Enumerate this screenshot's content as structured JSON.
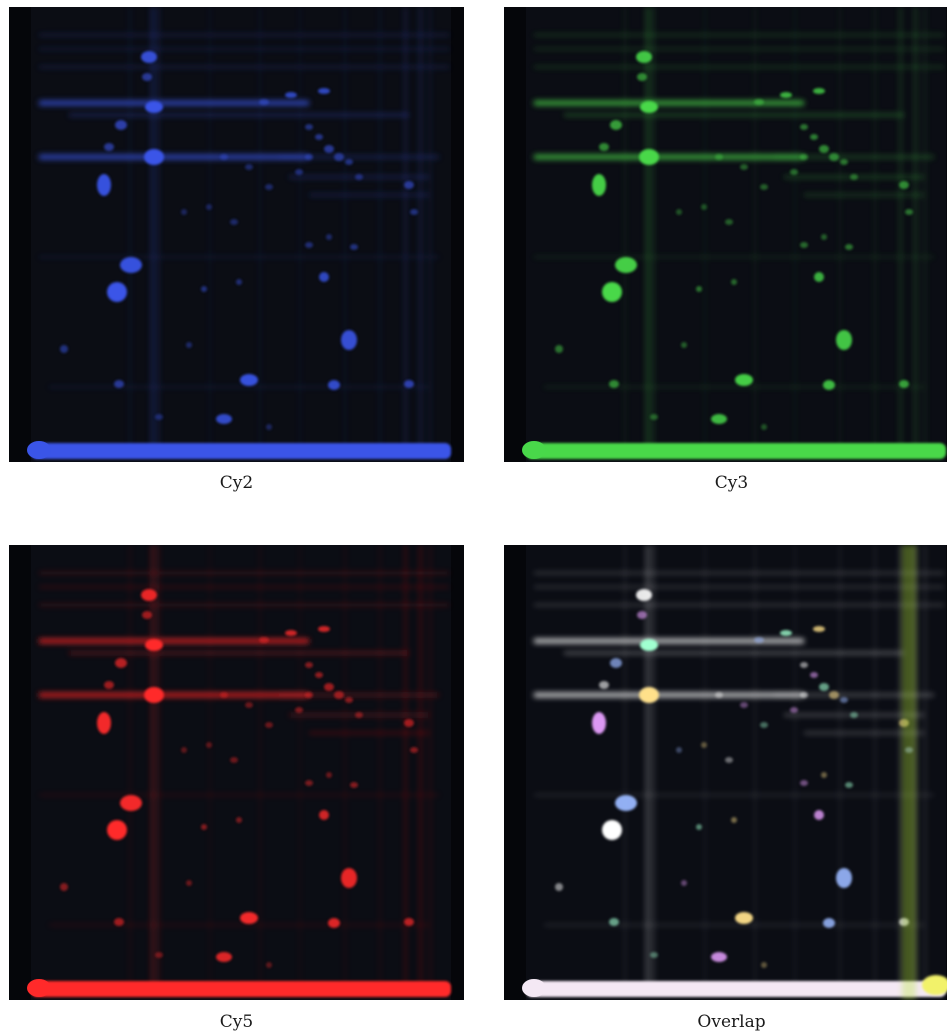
{
  "panels": [
    {
      "label": "Cy2",
      "channel": "blue",
      "color": "#3a55e8"
    },
    {
      "label": "Cy3",
      "channel": "green",
      "color": "#49d84a"
    },
    {
      "label": "Cy5",
      "channel": "red",
      "color": "#ff2a2a"
    },
    {
      "label": "Overlap",
      "channel": "overlay",
      "color": "#ffffff"
    }
  ]
}
